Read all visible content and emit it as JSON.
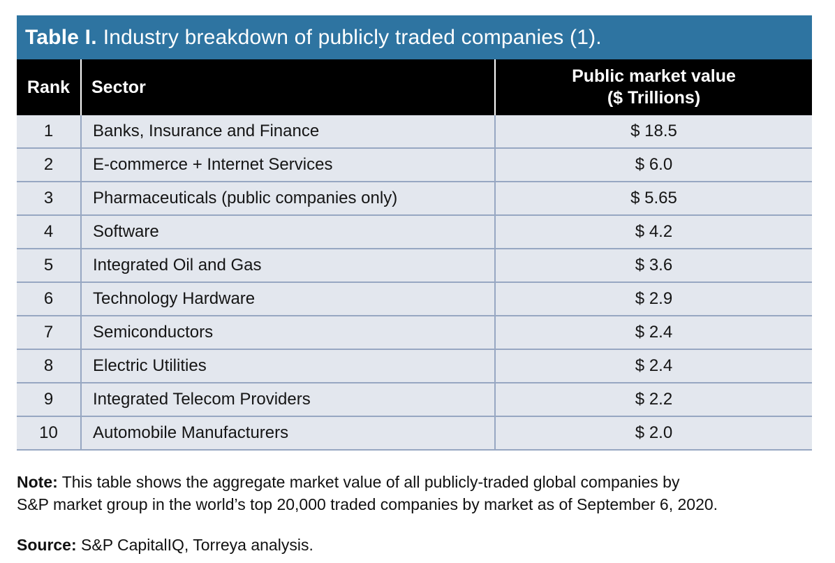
{
  "title": {
    "label": "Table I.",
    "text": "Industry breakdown of publicly traded companies (1)."
  },
  "table": {
    "columns": {
      "rank": "Rank",
      "sector": "Sector",
      "value_line1": "Public market value",
      "value_line2": "($ Trillions)"
    },
    "rows": [
      {
        "rank": "1",
        "sector": "Banks, Insurance and Finance",
        "value": "$ 18.5"
      },
      {
        "rank": "2",
        "sector": "E-commerce + Internet Services",
        "value": "$ 6.0"
      },
      {
        "rank": "3",
        "sector": "Pharmaceuticals (public companies only)",
        "value": "$ 5.65"
      },
      {
        "rank": "4",
        "sector": "Software",
        "value": "$ 4.2"
      },
      {
        "rank": "5",
        "sector": "Integrated Oil and Gas",
        "value": "$ 3.6"
      },
      {
        "rank": "6",
        "sector": "Technology Hardware",
        "value": "$ 2.9"
      },
      {
        "rank": "7",
        "sector": "Semiconductors",
        "value": "$ 2.4"
      },
      {
        "rank": "8",
        "sector": "Electric Utilities",
        "value": "$ 2.4"
      },
      {
        "rank": "9",
        "sector": "Integrated Telecom Providers",
        "value": "$ 2.2"
      },
      {
        "rank": "10",
        "sector": "Automobile Manufacturers",
        "value": "$ 2.0"
      }
    ]
  },
  "note": {
    "label": "Note:",
    "line1": " This table shows the aggregate market value of all publicly-traded global companies by",
    "line2": "S&P market group in the world’s top 20,000 traded companies by market as of September 6, 2020."
  },
  "source": {
    "label": "Source:",
    "text": " S&P CapitalIQ, Torreya analysis."
  },
  "colors": {
    "title_bg": "#2E74A1",
    "header_bg": "#000000",
    "row_bg": "#E3E7EE",
    "row_border": "#97A7C2",
    "title_text": "#FFFFFF"
  },
  "chart_data": {
    "type": "table",
    "title": "Table I. Industry breakdown of publicly traded companies (1).",
    "columns": [
      "Rank",
      "Sector",
      "Public market value ($ Trillions)"
    ],
    "categories": [
      "Banks, Insurance and Finance",
      "E-commerce + Internet Services",
      "Pharmaceuticals (public companies only)",
      "Software",
      "Integrated Oil and Gas",
      "Technology Hardware",
      "Semiconductors",
      "Electric Utilities",
      "Integrated Telecom Providers",
      "Automobile Manufacturers"
    ],
    "values": [
      18.5,
      6.0,
      5.65,
      4.2,
      3.6,
      2.9,
      2.4,
      2.4,
      2.2,
      2.0
    ]
  }
}
